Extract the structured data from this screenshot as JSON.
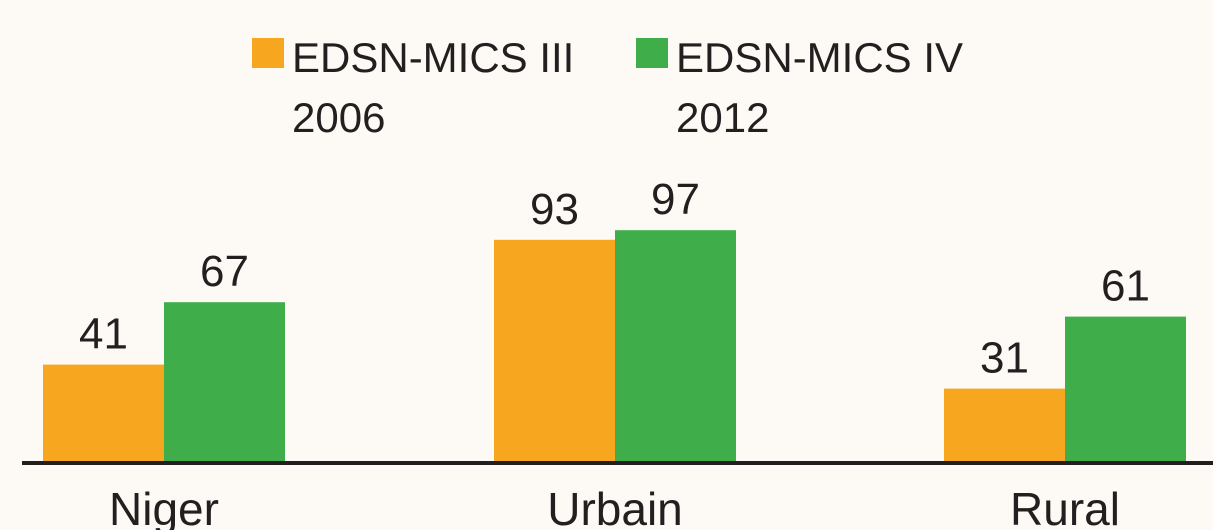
{
  "chart_data": {
    "type": "bar",
    "categories": [
      "Niger",
      "Urbain",
      "Rural"
    ],
    "series": [
      {
        "name": "EDSN-MICS III 2006",
        "color": "#f6a71f",
        "values": [
          41,
          93,
          31
        ]
      },
      {
        "name": "EDSN-MICS IV 2012",
        "color": "#3fae4a",
        "values": [
          67,
          97,
          61
        ]
      }
    ]
  }
}
